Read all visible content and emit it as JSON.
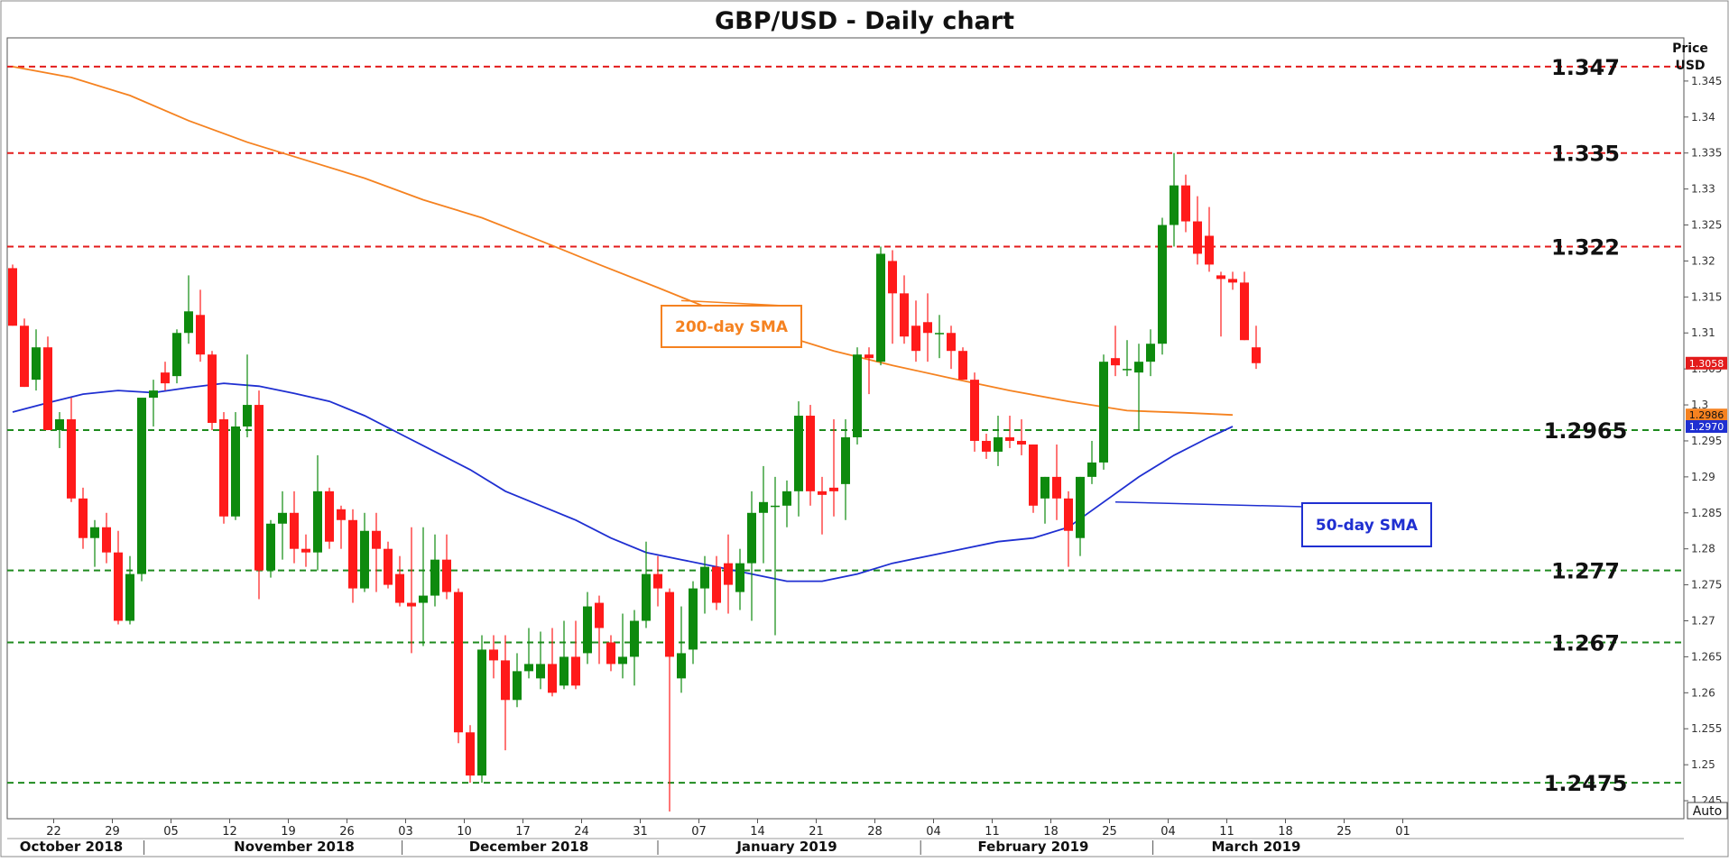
{
  "chart_data": {
    "type": "candlestick",
    "title": "GBP/USD - Daily chart",
    "axis_title_line1": "Price",
    "axis_title_line2": "USD",
    "auto_button": "Auto",
    "ylim": [
      1.2425,
      1.351
    ],
    "yticks": [
      "1.345",
      "1.34",
      "1.335",
      "1.33",
      "1.325",
      "1.32",
      "1.315",
      "1.31",
      "1.305",
      "1.3",
      "1.295",
      "1.29",
      "1.285",
      "1.28",
      "1.275",
      "1.27",
      "1.265",
      "1.26",
      "1.255",
      "1.25",
      "1.245"
    ],
    "ytick_values": [
      1.345,
      1.34,
      1.335,
      1.33,
      1.325,
      1.32,
      1.315,
      1.31,
      1.305,
      1.3,
      1.295,
      1.29,
      1.285,
      1.28,
      1.275,
      1.27,
      1.265,
      1.26,
      1.255,
      1.25,
      1.245
    ],
    "xticks": [
      {
        "label": "22",
        "i": 3.5
      },
      {
        "label": "29",
        "i": 8.5
      },
      {
        "label": "05",
        "i": 13.5
      },
      {
        "label": "12",
        "i": 18.5
      },
      {
        "label": "19",
        "i": 23.5
      },
      {
        "label": "26",
        "i": 28.5
      },
      {
        "label": "03",
        "i": 33.5
      },
      {
        "label": "10",
        "i": 38.5
      },
      {
        "label": "17",
        "i": 43.5
      },
      {
        "label": "24",
        "i": 48.5
      },
      {
        "label": "31",
        "i": 53.5
      },
      {
        "label": "07",
        "i": 58.5
      },
      {
        "label": "14",
        "i": 63.5
      },
      {
        "label": "21",
        "i": 68.5
      },
      {
        "label": "28",
        "i": 73.5
      },
      {
        "label": "04",
        "i": 78.5
      },
      {
        "label": "11",
        "i": 83.5
      },
      {
        "label": "18",
        "i": 88.5
      },
      {
        "label": "25",
        "i": 93.5
      },
      {
        "label": "04",
        "i": 98.5
      },
      {
        "label": "11",
        "i": 103.5
      },
      {
        "label": "18",
        "i": 108.5
      },
      {
        "label": "25",
        "i": 113.5
      },
      {
        "label": "01",
        "i": 118.5
      }
    ],
    "months": [
      {
        "label": "October 2018",
        "i": 5
      },
      {
        "label": "November 2018",
        "i": 24
      },
      {
        "label": "December 2018",
        "i": 44
      },
      {
        "label": "January 2019",
        "i": 66
      },
      {
        "label": "February 2019",
        "i": 87
      },
      {
        "label": "March 2019",
        "i": 106
      }
    ],
    "month_separators": [
      11.2,
      33.2,
      55.0,
      77.4,
      97.2
    ],
    "x_slots": 120,
    "candles": [
      {
        "o": 1.319,
        "h": 1.3195,
        "l": 1.311,
        "c": 1.311
      },
      {
        "o": 1.311,
        "h": 1.312,
        "l": 1.3025,
        "c": 1.3025
      },
      {
        "o": 1.3035,
        "h": 1.3105,
        "l": 1.302,
        "c": 1.308
      },
      {
        "o": 1.308,
        "h": 1.3095,
        "l": 1.2965,
        "c": 1.2965
      },
      {
        "o": 1.2965,
        "h": 1.299,
        "l": 1.294,
        "c": 1.298
      },
      {
        "o": 1.298,
        "h": 1.301,
        "l": 1.2865,
        "c": 1.287
      },
      {
        "o": 1.287,
        "h": 1.2885,
        "l": 1.28,
        "c": 1.2815
      },
      {
        "o": 1.2815,
        "h": 1.284,
        "l": 1.2775,
        "c": 1.283
      },
      {
        "o": 1.283,
        "h": 1.285,
        "l": 1.278,
        "c": 1.2795
      },
      {
        "o": 1.2795,
        "h": 1.2825,
        "l": 1.2695,
        "c": 1.27
      },
      {
        "o": 1.27,
        "h": 1.279,
        "l": 1.2695,
        "c": 1.2765
      },
      {
        "o": 1.2765,
        "h": 1.3,
        "l": 1.2755,
        "c": 1.301
      },
      {
        "o": 1.301,
        "h": 1.3035,
        "l": 1.297,
        "c": 1.302
      },
      {
        "o": 1.3045,
        "h": 1.306,
        "l": 1.302,
        "c": 1.303
      },
      {
        "o": 1.304,
        "h": 1.3105,
        "l": 1.303,
        "c": 1.31
      },
      {
        "o": 1.31,
        "h": 1.318,
        "l": 1.3085,
        "c": 1.313
      },
      {
        "o": 1.3125,
        "h": 1.316,
        "l": 1.306,
        "c": 1.307
      },
      {
        "o": 1.307,
        "h": 1.3075,
        "l": 1.2965,
        "c": 1.2975
      },
      {
        "o": 1.298,
        "h": 1.299,
        "l": 1.2835,
        "c": 1.2845
      },
      {
        "o": 1.2845,
        "h": 1.299,
        "l": 1.284,
        "c": 1.297
      },
      {
        "o": 1.297,
        "h": 1.307,
        "l": 1.2955,
        "c": 1.3
      },
      {
        "o": 1.3,
        "h": 1.302,
        "l": 1.273,
        "c": 1.277
      },
      {
        "o": 1.277,
        "h": 1.284,
        "l": 1.276,
        "c": 1.2835
      },
      {
        "o": 1.2835,
        "h": 1.288,
        "l": 1.2785,
        "c": 1.285
      },
      {
        "o": 1.285,
        "h": 1.288,
        "l": 1.278,
        "c": 1.28
      },
      {
        "o": 1.28,
        "h": 1.282,
        "l": 1.2775,
        "c": 1.2795
      },
      {
        "o": 1.2795,
        "h": 1.293,
        "l": 1.277,
        "c": 1.288
      },
      {
        "o": 1.288,
        "h": 1.2885,
        "l": 1.28,
        "c": 1.281
      },
      {
        "o": 1.2855,
        "h": 1.286,
        "l": 1.28,
        "c": 1.284
      },
      {
        "o": 1.284,
        "h": 1.2855,
        "l": 1.2725,
        "c": 1.2745
      },
      {
        "o": 1.2745,
        "h": 1.285,
        "l": 1.274,
        "c": 1.2825
      },
      {
        "o": 1.2825,
        "h": 1.285,
        "l": 1.274,
        "c": 1.28
      },
      {
        "o": 1.28,
        "h": 1.281,
        "l": 1.2745,
        "c": 1.275
      },
      {
        "o": 1.2765,
        "h": 1.279,
        "l": 1.272,
        "c": 1.2725
      },
      {
        "o": 1.2725,
        "h": 1.283,
        "l": 1.2655,
        "c": 1.272
      },
      {
        "o": 1.2725,
        "h": 1.283,
        "l": 1.2665,
        "c": 1.2735
      },
      {
        "o": 1.2735,
        "h": 1.282,
        "l": 1.272,
        "c": 1.2785
      },
      {
        "o": 1.2785,
        "h": 1.282,
        "l": 1.273,
        "c": 1.274
      },
      {
        "o": 1.274,
        "h": 1.2745,
        "l": 1.253,
        "c": 1.2545
      },
      {
        "o": 1.2545,
        "h": 1.2555,
        "l": 1.2475,
        "c": 1.2485
      },
      {
        "o": 1.2485,
        "h": 1.268,
        "l": 1.2475,
        "c": 1.266
      },
      {
        "o": 1.266,
        "h": 1.268,
        "l": 1.262,
        "c": 1.2645
      },
      {
        "o": 1.2645,
        "h": 1.268,
        "l": 1.252,
        "c": 1.259
      },
      {
        "o": 1.259,
        "h": 1.2655,
        "l": 1.258,
        "c": 1.263
      },
      {
        "o": 1.263,
        "h": 1.269,
        "l": 1.262,
        "c": 1.264
      },
      {
        "o": 1.262,
        "h": 1.2685,
        "l": 1.2605,
        "c": 1.264
      },
      {
        "o": 1.264,
        "h": 1.269,
        "l": 1.2595,
        "c": 1.26
      },
      {
        "o": 1.261,
        "h": 1.27,
        "l": 1.2605,
        "c": 1.265
      },
      {
        "o": 1.265,
        "h": 1.27,
        "l": 1.2605,
        "c": 1.261
      },
      {
        "o": 1.2655,
        "h": 1.274,
        "l": 1.264,
        "c": 1.272
      },
      {
        "o": 1.2725,
        "h": 1.2735,
        "l": 1.264,
        "c": 1.269
      },
      {
        "o": 1.267,
        "h": 1.268,
        "l": 1.263,
        "c": 1.264
      },
      {
        "o": 1.264,
        "h": 1.271,
        "l": 1.262,
        "c": 1.265
      },
      {
        "o": 1.265,
        "h": 1.2715,
        "l": 1.261,
        "c": 1.27
      },
      {
        "o": 1.27,
        "h": 1.281,
        "l": 1.269,
        "c": 1.2765
      },
      {
        "o": 1.2765,
        "h": 1.279,
        "l": 1.272,
        "c": 1.2745
      },
      {
        "o": 1.274,
        "h": 1.2745,
        "l": 1.2435,
        "c": 1.265
      },
      {
        "o": 1.262,
        "h": 1.272,
        "l": 1.26,
        "c": 1.2655
      },
      {
        "o": 1.266,
        "h": 1.2755,
        "l": 1.264,
        "c": 1.2745
      },
      {
        "o": 1.2745,
        "h": 1.279,
        "l": 1.271,
        "c": 1.2775
      },
      {
        "o": 1.2775,
        "h": 1.279,
        "l": 1.2715,
        "c": 1.2725
      },
      {
        "o": 1.278,
        "h": 1.282,
        "l": 1.271,
        "c": 1.275
      },
      {
        "o": 1.274,
        "h": 1.28,
        "l": 1.2715,
        "c": 1.278
      },
      {
        "o": 1.278,
        "h": 1.288,
        "l": 1.27,
        "c": 1.285
      },
      {
        "o": 1.285,
        "h": 1.2915,
        "l": 1.278,
        "c": 1.2865
      },
      {
        "o": 1.286,
        "h": 1.29,
        "l": 1.268,
        "c": 1.286
      },
      {
        "o": 1.286,
        "h": 1.2895,
        "l": 1.283,
        "c": 1.288
      },
      {
        "o": 1.288,
        "h": 1.3005,
        "l": 1.2845,
        "c": 1.2985
      },
      {
        "o": 1.2985,
        "h": 1.3,
        "l": 1.286,
        "c": 1.288
      },
      {
        "o": 1.288,
        "h": 1.29,
        "l": 1.282,
        "c": 1.2875
      },
      {
        "o": 1.2885,
        "h": 1.298,
        "l": 1.2845,
        "c": 1.288
      },
      {
        "o": 1.289,
        "h": 1.298,
        "l": 1.284,
        "c": 1.2955
      },
      {
        "o": 1.2955,
        "h": 1.308,
        "l": 1.2945,
        "c": 1.307
      },
      {
        "o": 1.307,
        "h": 1.308,
        "l": 1.3015,
        "c": 1.3065
      },
      {
        "o": 1.306,
        "h": 1.322,
        "l": 1.3055,
        "c": 1.321
      },
      {
        "o": 1.32,
        "h": 1.3215,
        "l": 1.3085,
        "c": 1.3155
      },
      {
        "o": 1.3155,
        "h": 1.318,
        "l": 1.3085,
        "c": 1.3095
      },
      {
        "o": 1.311,
        "h": 1.3145,
        "l": 1.306,
        "c": 1.3075
      },
      {
        "o": 1.3115,
        "h": 1.3155,
        "l": 1.306,
        "c": 1.31
      },
      {
        "o": 1.31,
        "h": 1.3125,
        "l": 1.3065,
        "c": 1.31
      },
      {
        "o": 1.31,
        "h": 1.311,
        "l": 1.305,
        "c": 1.3075
      },
      {
        "o": 1.3075,
        "h": 1.308,
        "l": 1.3035,
        "c": 1.3035
      },
      {
        "o": 1.3035,
        "h": 1.3045,
        "l": 1.2935,
        "c": 1.295
      },
      {
        "o": 1.295,
        "h": 1.296,
        "l": 1.2925,
        "c": 1.2935
      },
      {
        "o": 1.2935,
        "h": 1.2985,
        "l": 1.2915,
        "c": 1.2955
      },
      {
        "o": 1.2955,
        "h": 1.2985,
        "l": 1.294,
        "c": 1.295
      },
      {
        "o": 1.295,
        "h": 1.298,
        "l": 1.293,
        "c": 1.2945
      },
      {
        "o": 1.2945,
        "h": 1.2945,
        "l": 1.285,
        "c": 1.286
      },
      {
        "o": 1.287,
        "h": 1.29,
        "l": 1.2835,
        "c": 1.29
      },
      {
        "o": 1.29,
        "h": 1.2945,
        "l": 1.284,
        "c": 1.287
      },
      {
        "o": 1.287,
        "h": 1.288,
        "l": 1.2775,
        "c": 1.2825
      },
      {
        "o": 1.2815,
        "h": 1.29,
        "l": 1.279,
        "c": 1.29
      },
      {
        "o": 1.29,
        "h": 1.295,
        "l": 1.289,
        "c": 1.292
      },
      {
        "o": 1.292,
        "h": 1.307,
        "l": 1.291,
        "c": 1.306
      },
      {
        "o": 1.3065,
        "h": 1.311,
        "l": 1.304,
        "c": 1.3055
      },
      {
        "o": 1.305,
        "h": 1.309,
        "l": 1.304,
        "c": 1.305
      },
      {
        "o": 1.3045,
        "h": 1.3085,
        "l": 1.2965,
        "c": 1.306
      },
      {
        "o": 1.306,
        "h": 1.3105,
        "l": 1.304,
        "c": 1.3085
      },
      {
        "o": 1.3085,
        "h": 1.326,
        "l": 1.307,
        "c": 1.325
      },
      {
        "o": 1.325,
        "h": 1.335,
        "l": 1.322,
        "c": 1.3305
      },
      {
        "o": 1.3305,
        "h": 1.332,
        "l": 1.324,
        "c": 1.3255
      },
      {
        "o": 1.3255,
        "h": 1.329,
        "l": 1.3195,
        "c": 1.321
      },
      {
        "o": 1.3235,
        "h": 1.3275,
        "l": 1.3185,
        "c": 1.3195
      },
      {
        "o": 1.318,
        "h": 1.3185,
        "l": 1.3095,
        "c": 1.3175
      },
      {
        "o": 1.3175,
        "h": 1.3185,
        "l": 1.316,
        "c": 1.317
      },
      {
        "o": 1.317,
        "h": 1.3185,
        "l": 1.309,
        "c": 1.309
      },
      {
        "o": 1.308,
        "h": 1.311,
        "l": 1.305,
        "c": 1.3058
      }
    ],
    "series": [
      {
        "name": "200-day SMA",
        "color": "#F58220",
        "values": [
          [
            0,
            1.347
          ],
          [
            5,
            1.3455
          ],
          [
            10,
            1.343
          ],
          [
            15,
            1.3395
          ],
          [
            20,
            1.3365
          ],
          [
            25,
            1.334
          ],
          [
            30,
            1.3315
          ],
          [
            35,
            1.3285
          ],
          [
            40,
            1.326
          ],
          [
            45,
            1.3228
          ],
          [
            50,
            1.3195
          ],
          [
            55,
            1.3163
          ],
          [
            60,
            1.313
          ],
          [
            65,
            1.31
          ],
          [
            70,
            1.3075
          ],
          [
            75,
            1.3055
          ],
          [
            80,
            1.3037
          ],
          [
            85,
            1.302
          ],
          [
            90,
            1.3005
          ],
          [
            95,
            1.2992
          ],
          [
            100,
            1.2989
          ],
          [
            104,
            1.2986
          ]
        ]
      },
      {
        "name": "50-day SMA",
        "color": "#1F2FD1",
        "values": [
          [
            0,
            1.299
          ],
          [
            3,
            1.3003
          ],
          [
            6,
            1.3015
          ],
          [
            9,
            1.302
          ],
          [
            12,
            1.3017
          ],
          [
            15,
            1.3024
          ],
          [
            18,
            1.303
          ],
          [
            21,
            1.3026
          ],
          [
            24,
            1.3016
          ],
          [
            27,
            1.3005
          ],
          [
            30,
            1.2985
          ],
          [
            33,
            1.296
          ],
          [
            36,
            1.2935
          ],
          [
            39,
            1.291
          ],
          [
            42,
            1.288
          ],
          [
            45,
            1.286
          ],
          [
            48,
            1.284
          ],
          [
            51,
            1.2815
          ],
          [
            54,
            1.2795
          ],
          [
            57,
            1.2785
          ],
          [
            60,
            1.2775
          ],
          [
            63,
            1.2765
          ],
          [
            66,
            1.2755
          ],
          [
            69,
            1.2755
          ],
          [
            72,
            1.2765
          ],
          [
            75,
            1.278
          ],
          [
            78,
            1.279
          ],
          [
            81,
            1.28
          ],
          [
            84,
            1.281
          ],
          [
            87,
            1.2815
          ],
          [
            90,
            1.283
          ],
          [
            93,
            1.2865
          ],
          [
            96,
            1.29
          ],
          [
            99,
            1.293
          ],
          [
            102,
            1.2955
          ],
          [
            104,
            1.297
          ]
        ]
      }
    ],
    "levels": [
      {
        "value": 1.347,
        "label": "1.347",
        "color": "#E31B1B"
      },
      {
        "value": 1.335,
        "label": "1.335",
        "color": "#E31B1B"
      },
      {
        "value": 1.322,
        "label": "1.322",
        "color": "#E31B1B"
      },
      {
        "value": 1.2965,
        "label": "1.2965",
        "color": "#1E8A1E"
      },
      {
        "value": 1.277,
        "label": "1.277",
        "color": "#1E8A1E"
      },
      {
        "value": 1.267,
        "label": "1.267",
        "color": "#1E8A1E"
      },
      {
        "value": 1.2475,
        "label": "1.2475",
        "color": "#1E8A1E"
      }
    ],
    "price_tags": [
      {
        "value": 1.3058,
        "label": "1.3058",
        "color": "#E31B1B",
        "text_color": "#ffffff"
      },
      {
        "value": 1.2986,
        "label": "1.2986",
        "color": "#F58220",
        "text_color": "#111111"
      },
      {
        "value": 1.297,
        "label": "1.2970",
        "color": "#1F2FD1",
        "text_color": "#ffffff"
      }
    ],
    "annotations": [
      {
        "text": "200-day SMA",
        "color": "#F58220",
        "anchor_i": 57,
        "anchor_value": 1.3145
      },
      {
        "text": "50-day SMA",
        "color": "#1F2FD1",
        "anchor_i": 94,
        "anchor_value": 1.2865
      }
    ],
    "up_color": "#0E8A0E",
    "down_color": "#FF1A1A"
  }
}
